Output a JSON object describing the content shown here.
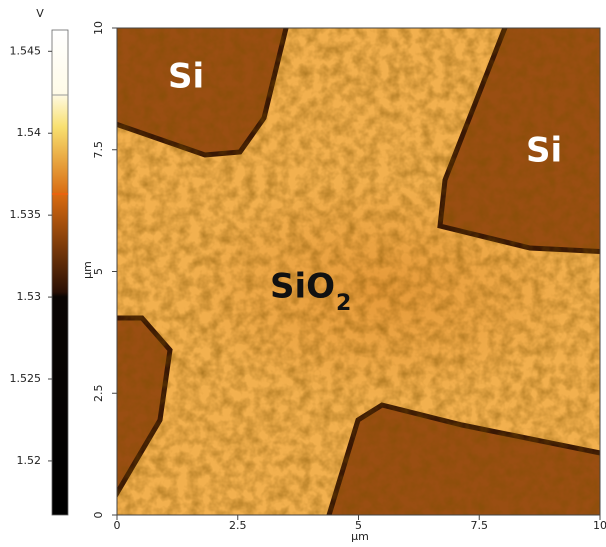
{
  "chart_data": {
    "type": "image-map",
    "xlabel": "µm",
    "ylabel": "µm",
    "xlim": [
      0,
      10
    ],
    "xticks": [
      0,
      2.5,
      5,
      7.5,
      10
    ],
    "ylim": [
      0,
      10
    ],
    "yticks": [
      0,
      2.5,
      5,
      7.5,
      10
    ],
    "colorbar": {
      "label": "V",
      "lim": [
        1.5167,
        1.5463
      ],
      "ticks": [
        1.52,
        1.525,
        1.53,
        1.535,
        1.54,
        1.545
      ]
    },
    "annotations": [
      "Si",
      "Si",
      "SiO",
      "2"
    ]
  }
}
